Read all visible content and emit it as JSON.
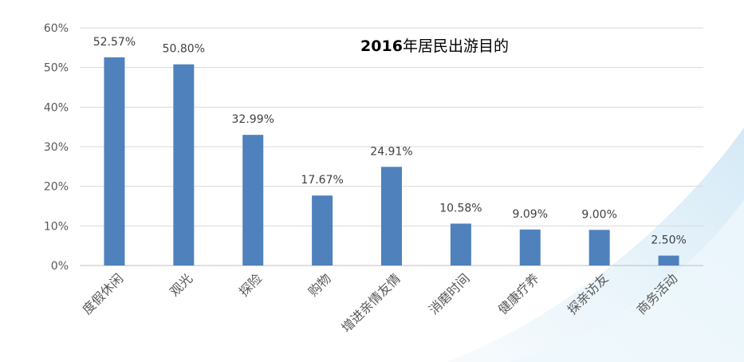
{
  "chart_data": {
    "type": "bar",
    "title_bold": "2016",
    "title_rest": "年居民出游目的",
    "categories": [
      "度假休闲",
      "观光",
      "探险",
      "购物",
      "增进亲情友情",
      "消磨时间",
      "健康疗养",
      "探亲访友",
      "商务活动"
    ],
    "values": [
      52.57,
      50.8,
      32.99,
      17.67,
      24.91,
      10.58,
      9.09,
      9.0,
      2.5
    ],
    "data_labels": [
      "52.57%",
      "50.80%",
      "32.99%",
      "17.67%",
      "24.91%",
      "10.58%",
      "9.09%",
      "9.00%",
      "2.50%"
    ],
    "yticks": [
      0,
      10,
      20,
      30,
      40,
      50,
      60
    ],
    "ytick_labels": [
      "0%",
      "10%",
      "20%",
      "30%",
      "40%",
      "50%",
      "60%"
    ],
    "ylim": [
      0,
      60
    ],
    "grid": true,
    "legend": "none",
    "bar_color": "#4f81bd"
  }
}
